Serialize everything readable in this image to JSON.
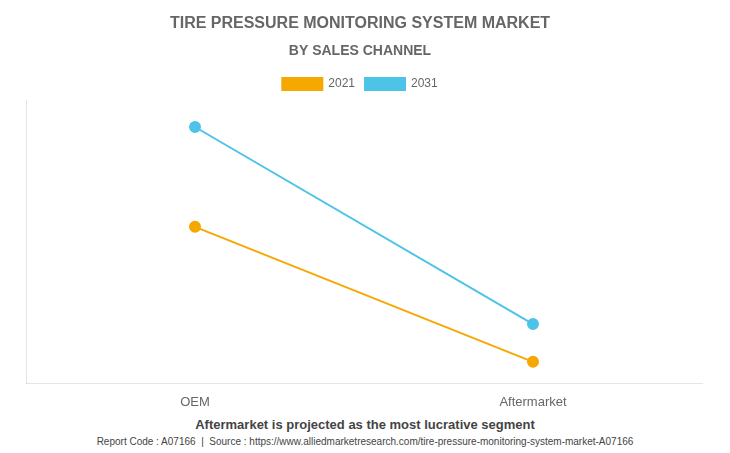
{
  "chart_data": {
    "type": "line",
    "title": "TIRE PRESSURE MONITORING SYSTEM MARKET",
    "subtitle": "BY SALES CHANNEL",
    "categories": [
      "OEM",
      "Aftermarket"
    ],
    "series": [
      {
        "name": "2021",
        "color": "#F5A800",
        "values": [
          0.58,
          0.08
        ]
      },
      {
        "name": "2031",
        "color": "#4DC3E8",
        "values": [
          0.95,
          0.22
        ]
      }
    ],
    "ylim": [
      0.0,
      1.05
    ],
    "grid": false,
    "tick_labels": "x",
    "legend": "top",
    "marker": "circle",
    "annotations": [
      "Aftermarket is projected as the most lucrative segment",
      "Report Code : A07166  |  Source : https://www.alliedmarketresearch.com/tire-pressure-monitoring-system-market-A07166"
    ]
  }
}
